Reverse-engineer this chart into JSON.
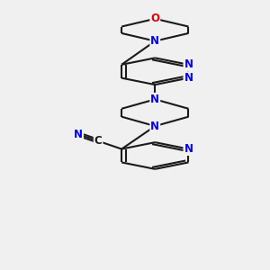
{
  "bg_color": "#f0f0f0",
  "bond_color": "#1a1a1a",
  "N_color": "#0000ee",
  "O_color": "#dd0000",
  "line_width": 1.5,
  "font_size_atom": 8.5,
  "canvas_xlim": [
    -1.8,
    2.2
  ],
  "canvas_ylim": [
    -4.2,
    4.2
  ]
}
